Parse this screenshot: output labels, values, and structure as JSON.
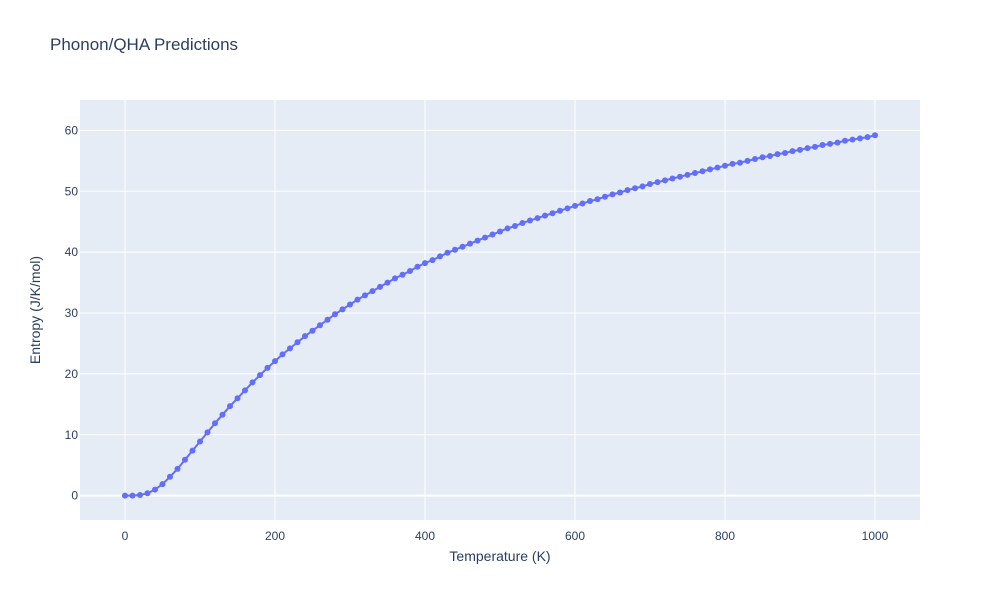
{
  "chart_data": {
    "type": "line",
    "title": "Phonon/QHA Predictions",
    "xlabel": "Temperature (K)",
    "ylabel": "Entropy (J/K/mol)",
    "xlim": [
      -60,
      1060
    ],
    "ylim": [
      -4,
      65
    ],
    "xticks": [
      0,
      200,
      400,
      600,
      800,
      1000
    ],
    "yticks": [
      0,
      10,
      20,
      30,
      40,
      50,
      60
    ],
    "grid": true,
    "series_color": "#636efa",
    "plot_background": "#e5ecf6",
    "series": [
      {
        "x": [
          0,
          10,
          20,
          30,
          40,
          50,
          60,
          70,
          80,
          90,
          100,
          110,
          120,
          130,
          140,
          150,
          160,
          170,
          180,
          190,
          200,
          210,
          220,
          230,
          240,
          250,
          260,
          270,
          280,
          290,
          300,
          310,
          320,
          330,
          340,
          350,
          360,
          370,
          380,
          390,
          400,
          410,
          420,
          430,
          440,
          450,
          460,
          470,
          480,
          490,
          500,
          510,
          520,
          530,
          540,
          550,
          560,
          570,
          580,
          590,
          600,
          610,
          620,
          630,
          640,
          650,
          660,
          670,
          680,
          690,
          700,
          710,
          720,
          730,
          740,
          750,
          760,
          770,
          780,
          790,
          800,
          810,
          820,
          830,
          840,
          850,
          860,
          870,
          880,
          890,
          900,
          910,
          920,
          930,
          940,
          950,
          960,
          970,
          980,
          990,
          1000
        ],
        "y": [
          0,
          0,
          0.1,
          0.4,
          1.0,
          1.9,
          3.1,
          4.4,
          5.9,
          7.4,
          8.9,
          10.4,
          11.9,
          13.3,
          14.7,
          16.0,
          17.3,
          18.6,
          19.8,
          21.0,
          22.1,
          23.2,
          24.2,
          25.2,
          26.2,
          27.1,
          28.0,
          28.9,
          29.8,
          30.6,
          31.4,
          32.2,
          32.9,
          33.6,
          34.3,
          35.0,
          35.7,
          36.3,
          36.9,
          37.6,
          38.2,
          38.7,
          39.3,
          39.9,
          40.4,
          40.9,
          41.4,
          41.9,
          42.4,
          42.9,
          43.4,
          43.9,
          44.3,
          44.8,
          45.2,
          45.6,
          46.0,
          46.4,
          46.8,
          47.2,
          47.6,
          48.0,
          48.4,
          48.7,
          49.1,
          49.5,
          49.8,
          50.2,
          50.5,
          50.8,
          51.2,
          51.5,
          51.8,
          52.1,
          52.4,
          52.7,
          53.0,
          53.3,
          53.6,
          53.9,
          54.2,
          54.5,
          54.7,
          55.0,
          55.3,
          55.6,
          55.8,
          56.1,
          56.3,
          56.6,
          56.8,
          57.1,
          57.3,
          57.6,
          57.8,
          58.0,
          58.3,
          58.5,
          58.7,
          58.9,
          59.2
        ]
      }
    ]
  }
}
